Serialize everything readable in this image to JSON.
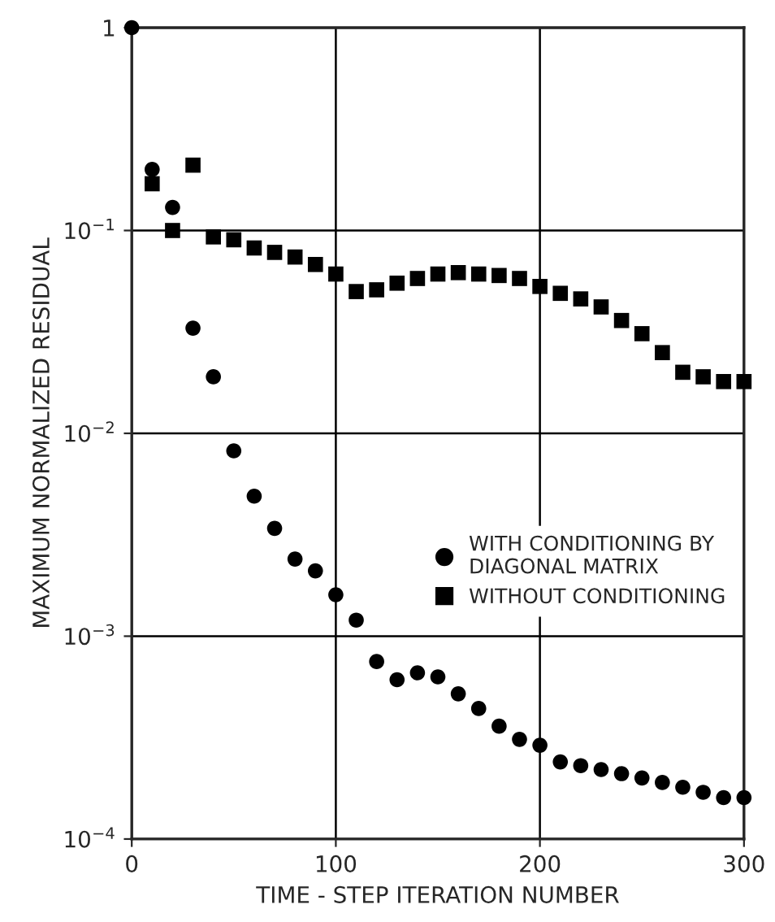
{
  "chart_data": {
    "type": "scatter",
    "xlabel": "TIME - STEP ITERATION NUMBER",
    "ylabel": "MAXIMUM NORMALIZED RESIDUAL",
    "log": "y",
    "grid": true,
    "legend": "right",
    "xlim": [
      0,
      300
    ],
    "xticks": [
      0,
      100,
      200,
      300
    ],
    "ylim": [
      0.0001,
      1
    ],
    "yticks": [
      {
        "value": 0.0001,
        "label": "10$^{−4}$"
      },
      {
        "value": 0.001,
        "label": "10$^{−3}$"
      },
      {
        "value": 0.01,
        "label": "10$^{−2}$"
      },
      {
        "value": 0.1,
        "label": "10$^{−1}$"
      },
      1
    ],
    "series": [
      {
        "name": "WITH CONDITIONING BY\nDIAGONAL MATRIX",
        "color": "#000000",
        "marker": "circle",
        "x": [
          0,
          10,
          20,
          30,
          40,
          50,
          60,
          70,
          80,
          90,
          100,
          110,
          120,
          130,
          140,
          150,
          160,
          170,
          180,
          190,
          200,
          210,
          220,
          230,
          240,
          250,
          260,
          270,
          280,
          290,
          300
        ],
        "values": [
          1,
          0.2,
          0.13,
          0.033,
          0.019,
          0.0082,
          0.0049,
          0.0034,
          0.0024,
          0.0021,
          0.0016,
          0.0012,
          0.00075,
          0.00061,
          0.00066,
          0.00063,
          0.00052,
          0.00044,
          0.00036,
          0.00031,
          0.00029,
          0.00024,
          0.00023,
          0.00022,
          0.00021,
          0.0002,
          0.00019,
          0.00018,
          0.00017,
          0.00016,
          0.00016
        ]
      },
      {
        "name": "WITHOUT CONDITIONING",
        "color": "#000000",
        "marker": "square",
        "x": [
          10,
          20,
          30,
          40,
          50,
          60,
          70,
          80,
          90,
          100,
          110,
          120,
          130,
          140,
          150,
          160,
          170,
          180,
          190,
          200,
          210,
          220,
          230,
          240,
          250,
          260,
          270,
          280,
          290,
          300
        ],
        "values": [
          0.17,
          0.1,
          0.21,
          0.093,
          0.09,
          0.082,
          0.078,
          0.074,
          0.068,
          0.061,
          0.05,
          0.051,
          0.055,
          0.058,
          0.061,
          0.062,
          0.061,
          0.06,
          0.058,
          0.053,
          0.049,
          0.046,
          0.042,
          0.036,
          0.031,
          0.025,
          0.02,
          0.019,
          0.018,
          0.018
        ]
      }
    ]
  }
}
